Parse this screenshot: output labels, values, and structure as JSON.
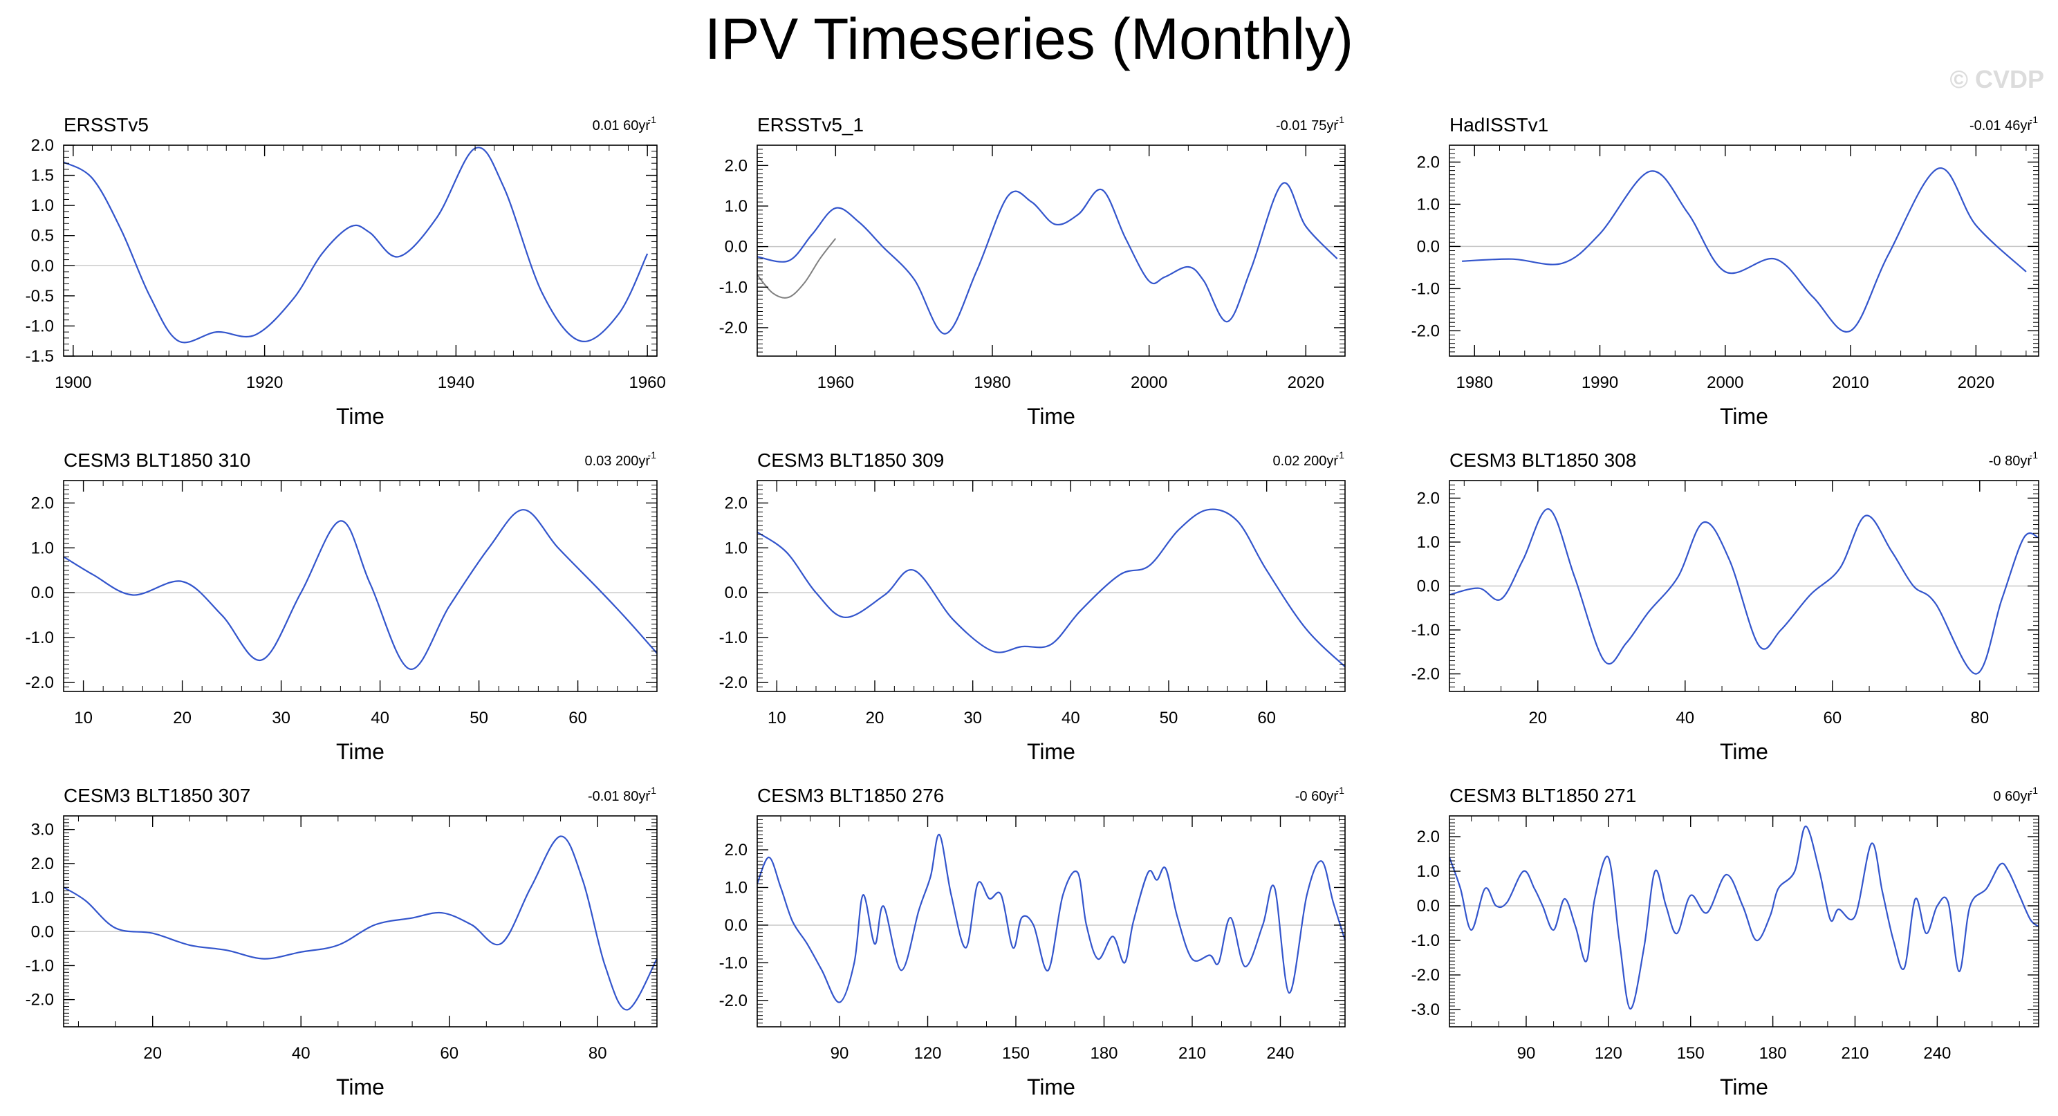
{
  "title": "IPV Timeseries (Monthly)",
  "watermark": "© CVDP",
  "colors": {
    "series": "#3355cc",
    "secondary": "#808080",
    "zero_line": "#c8c8c8",
    "axis": "#000000"
  },
  "chart_data": [
    {
      "type": "line",
      "name": "ERSSTv5",
      "trend": "0.01 60yr",
      "xlabel": "Time",
      "xlim": [
        1899,
        1961
      ],
      "ylim": [
        -1.5,
        2.0
      ],
      "xticks": [
        1900,
        1920,
        1940,
        1960
      ],
      "xtick_labels": [
        "1900",
        "1920",
        "1940",
        "1960"
      ],
      "yticks": [
        -1.5,
        -1.0,
        -0.5,
        0.0,
        0.5,
        1.0,
        1.5,
        2.0
      ],
      "ytick_labels": [
        "-1.5",
        "-1.0",
        "-0.5",
        "0.0",
        "0.5",
        "1.0",
        "1.5",
        "2.0"
      ],
      "series": [
        {
          "name": "IPV",
          "color": "#3355cc",
          "x": [
            1899,
            1902,
            1905,
            1908,
            1911,
            1915,
            1919,
            1923,
            1926,
            1929,
            1931,
            1934,
            1938,
            1942,
            1945,
            1949,
            1953,
            1957,
            1960
          ],
          "y": [
            1.72,
            1.45,
            0.6,
            -0.5,
            -1.25,
            -1.1,
            -1.15,
            -0.55,
            0.2,
            0.65,
            0.55,
            0.15,
            0.8,
            1.95,
            1.3,
            -0.45,
            -1.25,
            -0.8,
            0.2
          ]
        }
      ]
    },
    {
      "type": "line",
      "name": "ERSSTv5_1",
      "trend": "-0.01 75yr",
      "xlabel": "Time",
      "xlim": [
        1950,
        2025
      ],
      "ylim": [
        -2.7,
        2.5
      ],
      "xticks": [
        1960,
        1980,
        2000,
        2020
      ],
      "xtick_labels": [
        "1960",
        "1980",
        "2000",
        "2020"
      ],
      "yticks": [
        -2.0,
        -1.0,
        0.0,
        1.0,
        2.0
      ],
      "ytick_labels": [
        "-2.0",
        "-1.0",
        "0.0",
        "1.0",
        "2.0"
      ],
      "series": [
        {
          "name": "IPV",
          "color": "#3355cc",
          "x": [
            1950,
            1954,
            1957,
            1960,
            1963,
            1966,
            1970,
            1974,
            1978,
            1982,
            1985,
            1988,
            1991,
            1994,
            1997,
            2000,
            2002,
            2005,
            2007,
            2010,
            2013,
            2017,
            2020,
            2024
          ],
          "y": [
            -0.25,
            -0.35,
            0.3,
            0.95,
            0.6,
            0.0,
            -0.8,
            -2.15,
            -0.6,
            1.25,
            1.1,
            0.55,
            0.8,
            1.4,
            0.2,
            -0.85,
            -0.75,
            -0.5,
            -0.85,
            -1.85,
            -0.55,
            1.55,
            0.5,
            -0.3
          ]
        },
        {
          "name": "secondary",
          "color": "#808080",
          "x": [
            1950,
            1952,
            1954,
            1956,
            1958,
            1960
          ],
          "y": [
            -0.7,
            -1.15,
            -1.25,
            -0.9,
            -0.3,
            0.2
          ]
        }
      ]
    },
    {
      "type": "line",
      "name": "HadISSTv1",
      "trend": "-0.01 46yr",
      "xlabel": "Time",
      "xlim": [
        1978,
        2025
      ],
      "ylim": [
        -2.6,
        2.4
      ],
      "xticks": [
        1980,
        1990,
        2000,
        2010,
        2020
      ],
      "xtick_labels": [
        "1980",
        "1990",
        "2000",
        "2010",
        "2020"
      ],
      "yticks": [
        -2.0,
        -1.0,
        0.0,
        1.0,
        2.0
      ],
      "ytick_labels": [
        "-2.0",
        "-1.0",
        "0.0",
        "1.0",
        "2.0"
      ],
      "series": [
        {
          "name": "IPV",
          "color": "#3355cc",
          "x": [
            1979,
            1983,
            1987,
            1990,
            1994,
            1997,
            2000,
            2004,
            2007,
            2010,
            2013,
            2017,
            2020,
            2024
          ],
          "y": [
            -0.35,
            -0.3,
            -0.4,
            0.3,
            1.78,
            0.8,
            -0.6,
            -0.3,
            -1.2,
            -2.0,
            -0.2,
            1.85,
            0.5,
            -0.6
          ]
        }
      ]
    },
    {
      "type": "line",
      "name": "CESM3 BLT1850 310",
      "trend": "0.03 200yr",
      "xlabel": "Time",
      "xlim": [
        8,
        68
      ],
      "ylim": [
        -2.2,
        2.5
      ],
      "xticks": [
        10,
        20,
        30,
        40,
        50,
        60
      ],
      "xtick_labels": [
        "10",
        "20",
        "30",
        "40",
        "50",
        "60"
      ],
      "yticks": [
        -2.0,
        -1.0,
        0.0,
        1.0,
        2.0
      ],
      "ytick_labels": [
        "-2.0",
        "-1.0",
        "0.0",
        "1.0",
        "2.0"
      ],
      "series": [
        {
          "name": "IPV",
          "color": "#3355cc",
          "x": [
            8,
            11,
            15,
            20,
            24,
            28,
            32,
            36,
            39,
            43,
            47,
            51,
            54.5,
            58,
            62,
            65,
            68
          ],
          "y": [
            0.8,
            0.4,
            -0.05,
            0.25,
            -0.5,
            -1.5,
            0.0,
            1.6,
            0.2,
            -1.7,
            -0.3,
            1.0,
            1.85,
            1.0,
            0.1,
            -0.6,
            -1.35
          ]
        }
      ]
    },
    {
      "type": "line",
      "name": "CESM3 BLT1850 309",
      "trend": "0.02 200yr",
      "xlabel": "Time",
      "xlim": [
        8,
        68
      ],
      "ylim": [
        -2.2,
        2.5
      ],
      "xticks": [
        10,
        20,
        30,
        40,
        50,
        60
      ],
      "xtick_labels": [
        "10",
        "20",
        "30",
        "40",
        "50",
        "60"
      ],
      "yticks": [
        -2.0,
        -1.0,
        0.0,
        1.0,
        2.0
      ],
      "ytick_labels": [
        "-2.0",
        "-1.0",
        "0.0",
        "1.0",
        "2.0"
      ],
      "series": [
        {
          "name": "IPV",
          "color": "#3355cc",
          "x": [
            8,
            11,
            14,
            17,
            21,
            24,
            28,
            32,
            35,
            38,
            41,
            45,
            48,
            51,
            54,
            57,
            60,
            64,
            68
          ],
          "y": [
            1.35,
            0.9,
            0.0,
            -0.55,
            -0.05,
            0.5,
            -0.6,
            -1.3,
            -1.2,
            -1.15,
            -0.4,
            0.4,
            0.6,
            1.4,
            1.85,
            1.6,
            0.5,
            -0.8,
            -1.65
          ]
        }
      ]
    },
    {
      "type": "line",
      "name": "CESM3 BLT1850 308",
      "trend": "-0 80yr",
      "xlabel": "Time",
      "xlim": [
        8,
        88
      ],
      "ylim": [
        -2.4,
        2.4
      ],
      "xticks": [
        20,
        40,
        60,
        80
      ],
      "xtick_labels": [
        "20",
        "40",
        "60",
        "80"
      ],
      "yticks": [
        -2.0,
        -1.0,
        0.0,
        1.0,
        2.0
      ],
      "ytick_labels": [
        "-2.0",
        "-1.0",
        "0.0",
        "1.0",
        "2.0"
      ],
      "series": [
        {
          "name": "IPV",
          "color": "#3355cc",
          "x": [
            8,
            12,
            15,
            18,
            21.5,
            25,
            29,
            32,
            35,
            39,
            42.5,
            46,
            50,
            53,
            57,
            61,
            64.5,
            68,
            71,
            74,
            79.5,
            83,
            86,
            88
          ],
          "y": [
            -0.2,
            -0.05,
            -0.3,
            0.6,
            1.75,
            0.2,
            -1.7,
            -1.3,
            -0.6,
            0.2,
            1.45,
            0.6,
            -1.35,
            -1.0,
            -0.2,
            0.4,
            1.6,
            0.8,
            0.0,
            -0.4,
            -2.0,
            -0.3,
            1.1,
            1.1
          ]
        }
      ]
    },
    {
      "type": "line",
      "name": "CESM3 BLT1850 307",
      "trend": "-0.01 80yr",
      "xlabel": "Time",
      "xlim": [
        8,
        88
      ],
      "ylim": [
        -2.8,
        3.4
      ],
      "xticks": [
        20,
        40,
        60,
        80
      ],
      "xtick_labels": [
        "20",
        "40",
        "60",
        "80"
      ],
      "yticks": [
        -2.0,
        -1.0,
        0.0,
        1.0,
        2.0,
        3.0
      ],
      "ytick_labels": [
        "-2.0",
        "-1.0",
        "0.0",
        "1.0",
        "2.0",
        "3.0"
      ],
      "series": [
        {
          "name": "IPV",
          "color": "#3355cc",
          "x": [
            8,
            11,
            15,
            20,
            25,
            30,
            35,
            40,
            45,
            50,
            55,
            59,
            63,
            67,
            71,
            75,
            78,
            81,
            84,
            88
          ],
          "y": [
            1.3,
            0.9,
            0.1,
            -0.05,
            -0.4,
            -0.55,
            -0.8,
            -0.6,
            -0.4,
            0.2,
            0.4,
            0.55,
            0.2,
            -0.35,
            1.3,
            2.8,
            1.5,
            -1.0,
            -2.3,
            -0.8
          ]
        }
      ]
    },
    {
      "type": "line",
      "name": "CESM3 BLT1850 276",
      "trend": "-0 60yr",
      "xlabel": "Time",
      "xlim": [
        62,
        262
      ],
      "ylim": [
        -2.7,
        2.9
      ],
      "xticks": [
        90,
        120,
        150,
        180,
        210,
        240
      ],
      "xtick_labels": [
        "90",
        "120",
        "150",
        "180",
        "210",
        "240"
      ],
      "yticks": [
        -2.0,
        -1.0,
        0.0,
        1.0,
        2.0
      ],
      "ytick_labels": [
        "-2.0",
        "-1.0",
        "0.0",
        "1.0",
        "2.0"
      ],
      "series": [
        {
          "name": "IPV",
          "color": "#3355cc",
          "x": [
            62,
            66,
            70,
            74,
            79,
            84,
            90,
            95,
            98,
            102,
            105,
            111,
            117,
            121,
            124,
            128,
            133,
            137,
            141,
            145,
            149,
            152,
            156,
            161,
            166,
            171,
            174,
            178,
            183,
            187,
            190,
            195,
            198,
            201,
            205,
            210,
            216,
            219,
            223,
            228,
            234,
            238,
            243,
            249,
            254,
            258,
            262
          ],
          "y": [
            1.1,
            1.8,
            1.0,
            0.1,
            -0.5,
            -1.2,
            -2.05,
            -1.0,
            0.8,
            -0.5,
            0.5,
            -1.2,
            0.4,
            1.3,
            2.4,
            0.8,
            -0.6,
            1.1,
            0.7,
            0.8,
            -0.6,
            0.2,
            0.0,
            -1.2,
            0.8,
            1.4,
            0.0,
            -0.9,
            -0.3,
            -1.0,
            0.1,
            1.4,
            1.2,
            1.5,
            0.2,
            -0.9,
            -0.8,
            -1.0,
            0.2,
            -1.1,
            0.0,
            1.0,
            -1.8,
            0.8,
            1.7,
            0.6,
            -0.4
          ]
        }
      ]
    },
    {
      "type": "line",
      "name": "CESM3 BLT1850 271",
      "trend": "0 60yr",
      "xlabel": "Time",
      "xlim": [
        62,
        277
      ],
      "ylim": [
        -3.5,
        2.6
      ],
      "xticks": [
        90,
        120,
        150,
        180,
        210,
        240
      ],
      "xtick_labels": [
        "90",
        "120",
        "150",
        "180",
        "210",
        "240"
      ],
      "yticks": [
        -3.0,
        -2.0,
        -1.0,
        0.0,
        1.0,
        2.0
      ],
      "ytick_labels": [
        "-3.0",
        "-2.0",
        "-1.0",
        "0.0",
        "1.0",
        "2.0"
      ],
      "series": [
        {
          "name": "IPV",
          "color": "#3355cc",
          "x": [
            62,
            66,
            70,
            75,
            79,
            83,
            89,
            93,
            96,
            100,
            104,
            108,
            112,
            115,
            120,
            124,
            128,
            133,
            137,
            141,
            145,
            150,
            156,
            163,
            169,
            174,
            179,
            182,
            188,
            192,
            197,
            201,
            204,
            210,
            216,
            220,
            224,
            228,
            232,
            236,
            240,
            244,
            248,
            252,
            258,
            263,
            266,
            270,
            274,
            277
          ],
          "y": [
            1.4,
            0.5,
            -0.7,
            0.5,
            0.0,
            0.1,
            1.0,
            0.5,
            0.0,
            -0.7,
            0.2,
            -0.6,
            -1.6,
            0.2,
            1.4,
            -1.0,
            -2.98,
            -1.2,
            1.0,
            0.0,
            -0.8,
            0.3,
            -0.2,
            0.9,
            0.0,
            -1.0,
            -0.3,
            0.5,
            1.0,
            2.3,
            1.0,
            -0.4,
            -0.1,
            -0.3,
            1.8,
            0.4,
            -1.0,
            -1.8,
            0.2,
            -0.8,
            0.0,
            0.1,
            -1.9,
            0.0,
            0.5,
            1.2,
            1.0,
            0.3,
            -0.4,
            -0.6
          ]
        }
      ]
    }
  ]
}
